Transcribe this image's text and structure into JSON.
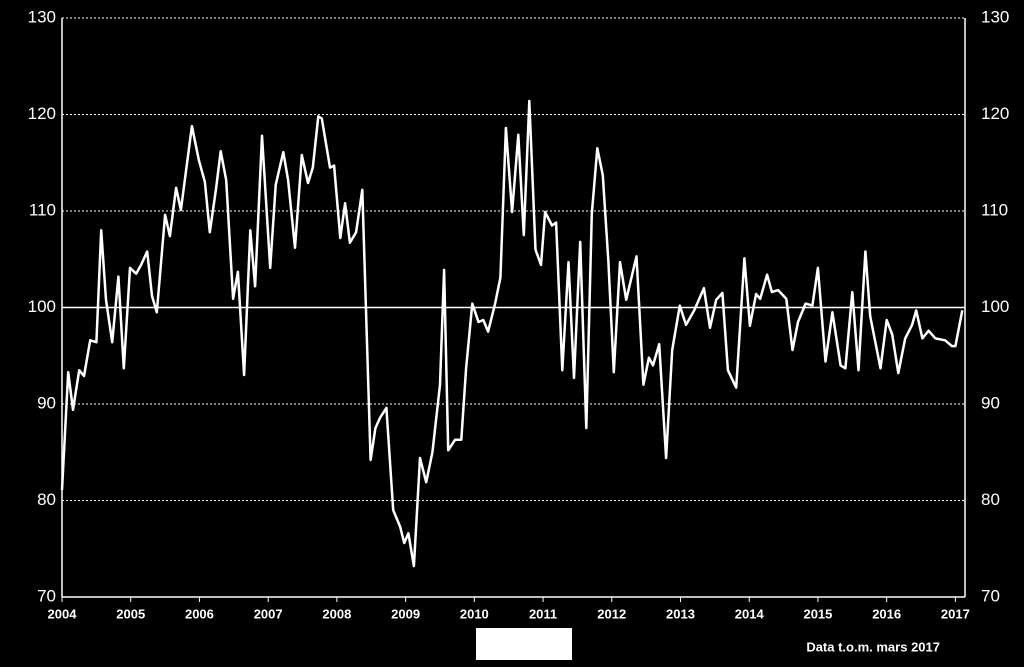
{
  "chart_data": {
    "type": "line",
    "x": [
      2004.0,
      2004.09,
      2004.16,
      2004.25,
      2004.32,
      2004.41,
      2004.5,
      2004.57,
      2004.64,
      2004.73,
      2004.82,
      2004.9,
      2004.99,
      2005.08,
      2005.15,
      2005.24,
      2005.31,
      2005.38,
      2005.5,
      2005.57,
      2005.66,
      2005.73,
      2005.89,
      2005.99,
      2006.08,
      2006.15,
      2006.24,
      2006.31,
      2006.39,
      2006.49,
      2006.56,
      2006.65,
      2006.74,
      2006.81,
      2006.91,
      2007.03,
      2007.11,
      2007.22,
      2007.29,
      2007.39,
      2007.49,
      2007.58,
      2007.65,
      2007.73,
      2007.78,
      2007.9,
      2007.96,
      2008.05,
      2008.12,
      2008.19,
      2008.28,
      2008.37,
      2008.49,
      2008.56,
      2008.63,
      2008.72,
      2008.82,
      2008.92,
      2008.98,
      2009.04,
      2009.12,
      2009.21,
      2009.3,
      2009.39,
      2009.5,
      2009.56,
      2009.62,
      2009.72,
      2009.81,
      2009.88,
      2009.97,
      2010.06,
      2010.13,
      2010.2,
      2010.3,
      2010.38,
      2010.46,
      2010.55,
      2010.64,
      2010.72,
      2010.8,
      2010.89,
      2010.97,
      2011.03,
      2011.13,
      2011.19,
      2011.28,
      2011.37,
      2011.45,
      2011.54,
      2011.63,
      2011.71,
      2011.79,
      2011.87,
      2011.95,
      2012.03,
      2012.12,
      2012.21,
      2012.36,
      2012.46,
      2012.54,
      2012.6,
      2012.69,
      2012.79,
      2012.88,
      2012.99,
      2013.08,
      2013.2,
      2013.34,
      2013.43,
      2013.52,
      2013.61,
      2013.69,
      2013.81,
      2013.93,
      2014.01,
      2014.1,
      2014.16,
      2014.26,
      2014.33,
      2014.42,
      2014.54,
      2014.63,
      2014.71,
      2014.82,
      2014.92,
      2015.0,
      2015.11,
      2015.21,
      2015.33,
      2015.4,
      2015.5,
      2015.59,
      2015.69,
      2015.76,
      2015.91,
      2016.0,
      2016.08,
      2016.17,
      2016.27,
      2016.37,
      2016.43,
      2016.52,
      2016.61,
      2016.71,
      2016.85,
      2016.95,
      2017.0,
      2017.1
    ],
    "series": [
      {
        "color": "#ffffff",
        "values": [
          81.1,
          93.3,
          89.4,
          93.5,
          92.9,
          96.6,
          96.4,
          108,
          100.8,
          96.4,
          103.2,
          93.7,
          104.1,
          103.5,
          104.4,
          105.8,
          101.2,
          99.5,
          109.6,
          107.4,
          112.4,
          110.1,
          118.8,
          115.3,
          113,
          107.8,
          112.2,
          116.2,
          113.2,
          100.9,
          103.7,
          93,
          108,
          102.2,
          117.8,
          104.1,
          112.7,
          116.1,
          113.2,
          106.2,
          115.8,
          112.9,
          114.5,
          119.8,
          119.6,
          114.5,
          114.7,
          107.2,
          110.8,
          106.7,
          107.8,
          112.2,
          84.2,
          87.5,
          88.6,
          89.6,
          79,
          77.3,
          75.6,
          76.6,
          73.2,
          84.4,
          81.9,
          85,
          92,
          103.9,
          85.2,
          86.3,
          86.3,
          93.7,
          100.4,
          98.5,
          98.7,
          97.5,
          100.3,
          103.1,
          118.6,
          109.9,
          117.9,
          107.5,
          121.4,
          106,
          104.4,
          109.9,
          108.5,
          108.8,
          93.5,
          104.7,
          92.7,
          106.8,
          87.5,
          109.7,
          116.5,
          113.7,
          104.9,
          93.3,
          104.7,
          100.8,
          105.3,
          92,
          94.8,
          94,
          96.2,
          84.4,
          95.6,
          100.2,
          98.2,
          99.7,
          102,
          97.9,
          100.8,
          101.5,
          93.5,
          91.7,
          105.1,
          98.1,
          101.4,
          100.9,
          103.4,
          101.6,
          101.8,
          100.9,
          95.6,
          98.5,
          100.4,
          100.2,
          104.1,
          94.4,
          99.5,
          94,
          93.7,
          101.6,
          93.5,
          105.8,
          99.1,
          93.7,
          98.7,
          97.2,
          93.2,
          96.8,
          98.2,
          99.7,
          96.8,
          97.6,
          96.8,
          96.6,
          96,
          96,
          99.7
        ]
      }
    ],
    "xlim": [
      2004,
      2017.14
    ],
    "xticks": [
      2004,
      2005,
      2006,
      2007,
      2008,
      2009,
      2010,
      2011,
      2012,
      2013,
      2014,
      2015,
      2016,
      2017
    ],
    "ylim": [
      70,
      130
    ],
    "yticks": [
      70,
      80,
      90,
      100,
      110,
      120,
      130
    ],
    "grid": true,
    "reference_line": 100,
    "annotation": "Data t.o.m. mars 2017"
  }
}
